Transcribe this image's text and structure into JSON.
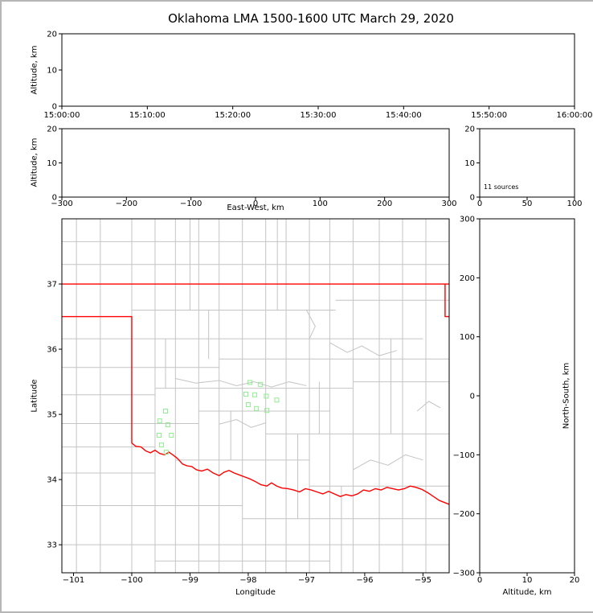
{
  "colors": {
    "axis": "#000000",
    "background": "#ffffff",
    "frame": "#b6b6b6",
    "county_line": "#c4c4c4",
    "state_border": "#ff0000",
    "source_marker": "#90ee90"
  },
  "chart_data": {
    "type": "scatter",
    "title": "Oklahoma LMA 1500-1600 UTC March 29, 2020",
    "panels": {
      "time_altitude": {
        "ylabel": "Altitude, km",
        "xlabel": "",
        "ylim": [
          0,
          20
        ],
        "yticks": [
          0,
          10,
          20
        ],
        "xtick_labels": [
          "15:00:00",
          "15:10:00",
          "15:20:00",
          "15:30:00",
          "15:40:00",
          "15:50:00",
          "16:00:00"
        ],
        "points": []
      },
      "ew_altitude": {
        "ylabel": "Altitude, km",
        "xlabel": "East-West, km",
        "ylim": [
          0,
          20
        ],
        "yticks": [
          0,
          10,
          20
        ],
        "xlim": [
          -300,
          300
        ],
        "xticks": [
          -300,
          -200,
          -100,
          0,
          100,
          200,
          300
        ],
        "points": []
      },
      "histogram": {
        "annotation": "11 sources",
        "ylim": [
          0,
          20
        ],
        "yticks": [
          0,
          10,
          20
        ],
        "xlim": [
          0,
          100
        ],
        "xticks": [
          0,
          50,
          100
        ],
        "points": []
      },
      "map": {
        "ylabel": "Latitude",
        "xlabel": "Longitude",
        "xlim": [
          -101.2,
          -94.55
        ],
        "ylim": [
          32.57,
          38.0
        ],
        "xticks": [
          -101,
          -100,
          -99,
          -98,
          -97,
          -96,
          -95
        ],
        "yticks": [
          33,
          34,
          35,
          36,
          37
        ],
        "sources": [
          [
            -99.42,
            35.05
          ],
          [
            -99.52,
            34.9
          ],
          [
            -99.38,
            34.84
          ],
          [
            -99.53,
            34.68
          ],
          [
            -99.32,
            34.68
          ],
          [
            -99.49,
            34.53
          ],
          [
            -99.41,
            34.42
          ],
          [
            -97.97,
            35.49
          ],
          [
            -97.79,
            35.46
          ],
          [
            -98.04,
            35.31
          ],
          [
            -97.89,
            35.3
          ],
          [
            -97.69,
            35.28
          ],
          [
            -97.51,
            35.22
          ],
          [
            -98.0,
            35.15
          ],
          [
            -97.86,
            35.09
          ],
          [
            -97.68,
            35.06
          ]
        ],
        "state_border": [
          [
            [
              -101.2,
              37.0
            ],
            [
              -94.55,
              37.0
            ]
          ],
          [
            [
              -94.62,
              37.0
            ],
            [
              -94.62,
              36.5
            ],
            [
              -94.55,
              36.5
            ]
          ],
          [
            [
              -101.2,
              36.5
            ],
            [
              -100.0,
              36.5
            ],
            [
              -100.0,
              34.56
            ],
            [
              -99.93,
              34.51
            ],
            [
              -99.84,
              34.5
            ],
            [
              -99.76,
              34.44
            ],
            [
              -99.68,
              34.41
            ],
            [
              -99.6,
              34.45
            ],
            [
              -99.52,
              34.4
            ],
            [
              -99.44,
              34.38
            ],
            [
              -99.36,
              34.42
            ],
            [
              -99.28,
              34.37
            ],
            [
              -99.21,
              34.32
            ],
            [
              -99.13,
              34.24
            ],
            [
              -99.05,
              34.21
            ],
            [
              -98.97,
              34.2
            ],
            [
              -98.89,
              34.15
            ],
            [
              -98.8,
              34.13
            ],
            [
              -98.7,
              34.16
            ],
            [
              -98.6,
              34.1
            ],
            [
              -98.5,
              34.06
            ],
            [
              -98.42,
              34.11
            ],
            [
              -98.33,
              34.14
            ],
            [
              -98.24,
              34.1
            ],
            [
              -98.15,
              34.07
            ],
            [
              -98.06,
              34.04
            ],
            [
              -97.97,
              34.01
            ],
            [
              -97.88,
              33.97
            ],
            [
              -97.78,
              33.92
            ],
            [
              -97.68,
              33.9
            ],
            [
              -97.6,
              33.95
            ],
            [
              -97.51,
              33.9
            ],
            [
              -97.42,
              33.87
            ],
            [
              -97.32,
              33.86
            ],
            [
              -97.22,
              33.84
            ],
            [
              -97.12,
              33.81
            ],
            [
              -97.02,
              33.86
            ],
            [
              -96.92,
              33.84
            ],
            [
              -96.82,
              33.81
            ],
            [
              -96.72,
              33.78
            ],
            [
              -96.62,
              33.82
            ],
            [
              -96.52,
              33.78
            ],
            [
              -96.42,
              33.74
            ],
            [
              -96.32,
              33.77
            ],
            [
              -96.22,
              33.75
            ],
            [
              -96.12,
              33.78
            ],
            [
              -96.02,
              33.84
            ],
            [
              -95.92,
              33.82
            ],
            [
              -95.82,
              33.86
            ],
            [
              -95.72,
              33.84
            ],
            [
              -95.62,
              33.88
            ],
            [
              -95.52,
              33.86
            ],
            [
              -95.42,
              33.84
            ],
            [
              -95.32,
              33.86
            ],
            [
              -95.22,
              33.9
            ],
            [
              -95.12,
              33.88
            ],
            [
              -95.02,
              33.85
            ],
            [
              -94.92,
              33.8
            ],
            [
              -94.82,
              33.74
            ],
            [
              -94.72,
              33.68
            ],
            [
              -94.55,
              33.62
            ]
          ]
        ],
        "county_verticals": [
          [
            -100.95,
            32.57,
            38.0
          ],
          [
            -100.54,
            32.57,
            38.0
          ],
          [
            -100.0,
            32.57,
            38.0
          ],
          [
            -99.6,
            32.57,
            38.0
          ],
          [
            -99.25,
            32.57,
            38.0
          ],
          [
            -98.85,
            32.57,
            38.0
          ],
          [
            -98.5,
            32.57,
            38.0
          ],
          [
            -98.1,
            32.57,
            38.0
          ],
          [
            -97.7,
            32.57,
            38.0
          ],
          [
            -97.35,
            32.57,
            38.0
          ],
          [
            -96.95,
            32.57,
            38.0
          ],
          [
            -96.6,
            32.57,
            38.0
          ],
          [
            -96.2,
            32.57,
            38.0
          ],
          [
            -95.75,
            32.57,
            38.0
          ],
          [
            -95.35,
            32.57,
            38.0
          ],
          [
            -94.95,
            32.57,
            38.0
          ],
          [
            -99.42,
            35.4,
            36.16
          ],
          [
            -98.3,
            34.3,
            35.05
          ],
          [
            -97.15,
            33.4,
            34.7
          ],
          [
            -95.55,
            34.7,
            36.16
          ],
          [
            -96.4,
            32.57,
            33.9
          ],
          [
            -99.0,
            36.6,
            38.0
          ],
          [
            -97.5,
            36.6,
            38.0
          ],
          [
            -98.68,
            35.85,
            36.6
          ],
          [
            -96.78,
            34.7,
            35.5
          ]
        ],
        "county_horizontals": [
          [
            37.65,
            -101.2,
            -94.55
          ],
          [
            37.3,
            -101.2,
            -94.55
          ],
          [
            36.6,
            -100.0,
            -96.5
          ],
          [
            36.75,
            -96.5,
            -94.55
          ],
          [
            36.16,
            -101.2,
            -95.0
          ],
          [
            35.85,
            -98.5,
            -94.55
          ],
          [
            35.72,
            -101.2,
            -98.5
          ],
          [
            35.4,
            -99.6,
            -96.2
          ],
          [
            35.5,
            -96.2,
            -94.55
          ],
          [
            35.3,
            -101.2,
            -99.6
          ],
          [
            35.05,
            -98.85,
            -96.6
          ],
          [
            34.86,
            -101.2,
            -98.85
          ],
          [
            34.7,
            -97.7,
            -94.55
          ],
          [
            34.5,
            -101.2,
            -99.6
          ],
          [
            34.3,
            -99.25,
            -96.95
          ],
          [
            34.1,
            -101.2,
            -99.6
          ],
          [
            33.9,
            -96.95,
            -94.55
          ],
          [
            33.6,
            -101.2,
            -98.1
          ],
          [
            33.4,
            -98.1,
            -94.55
          ],
          [
            33.0,
            -101.2,
            -94.55
          ],
          [
            32.75,
            -99.6,
            -96.6
          ]
        ],
        "county_polylines": [
          [
            [
              -99.25,
              35.55
            ],
            [
              -98.9,
              35.48
            ],
            [
              -98.5,
              35.52
            ],
            [
              -98.2,
              35.44
            ],
            [
              -97.9,
              35.5
            ],
            [
              -97.6,
              35.42
            ],
            [
              -97.3,
              35.5
            ],
            [
              -97.0,
              35.44
            ]
          ],
          [
            [
              -96.6,
              36.1
            ],
            [
              -96.3,
              35.95
            ],
            [
              -96.05,
              36.05
            ],
            [
              -95.75,
              35.9
            ],
            [
              -95.45,
              35.98
            ]
          ],
          [
            [
              -98.5,
              34.85
            ],
            [
              -98.2,
              34.92
            ],
            [
              -97.95,
              34.8
            ],
            [
              -97.7,
              34.87
            ]
          ],
          [
            [
              -96.2,
              34.15
            ],
            [
              -95.9,
              34.3
            ],
            [
              -95.6,
              34.22
            ],
            [
              -95.3,
              34.38
            ],
            [
              -95.0,
              34.3
            ]
          ],
          [
            [
              -97.0,
              36.6
            ],
            [
              -96.85,
              36.35
            ],
            [
              -96.95,
              36.16
            ]
          ],
          [
            [
              -95.1,
              35.05
            ],
            [
              -94.9,
              35.2
            ],
            [
              -94.7,
              35.1
            ]
          ]
        ]
      },
      "ns_altitude": {
        "ylabel": "North-South, km",
        "xlabel": "Altitude, km",
        "ylim": [
          -300,
          300
        ],
        "yticks": [
          -300,
          -200,
          -100,
          0,
          100,
          200,
          300
        ],
        "xlim": [
          0,
          20
        ],
        "xticks": [
          0,
          10,
          20
        ],
        "points": []
      }
    }
  }
}
